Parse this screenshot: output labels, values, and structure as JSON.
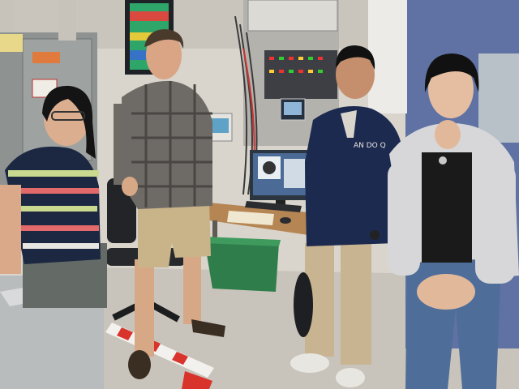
{
  "scene": {
    "setting": "laboratory",
    "people_count": 4,
    "colors": {
      "wall": "#d9d5cd",
      "floor": "#c9c4bb",
      "cabinet": "#8e9291",
      "door": "#5f72a3",
      "monitor": "#2b3640",
      "desk": "#b58654",
      "bin": "#2f7d4a",
      "tape_red": "#d8342c",
      "tape_white": "#f3f1ee"
    }
  },
  "people": [
    {
      "id": "person-1",
      "shirt": "#1c2741",
      "stripe1": "#c9d98f",
      "stripe2": "#e36a6a",
      "pants": "#646a66"
    },
    {
      "id": "person-2",
      "shirt": "#6e6a66",
      "shorts": "#c9b48a",
      "shoes": "#3a2d22"
    },
    {
      "id": "person-3",
      "hoodie": "#1d2a4f",
      "pants": "#c8b491",
      "shoes": "#e8e6e1"
    },
    {
      "id": "person-4",
      "hoodie": "#d7d7d9",
      "top": "#1a1a1a",
      "jeans": "#4f6d99"
    }
  ],
  "hoodie_logo": "AN DO Q"
}
